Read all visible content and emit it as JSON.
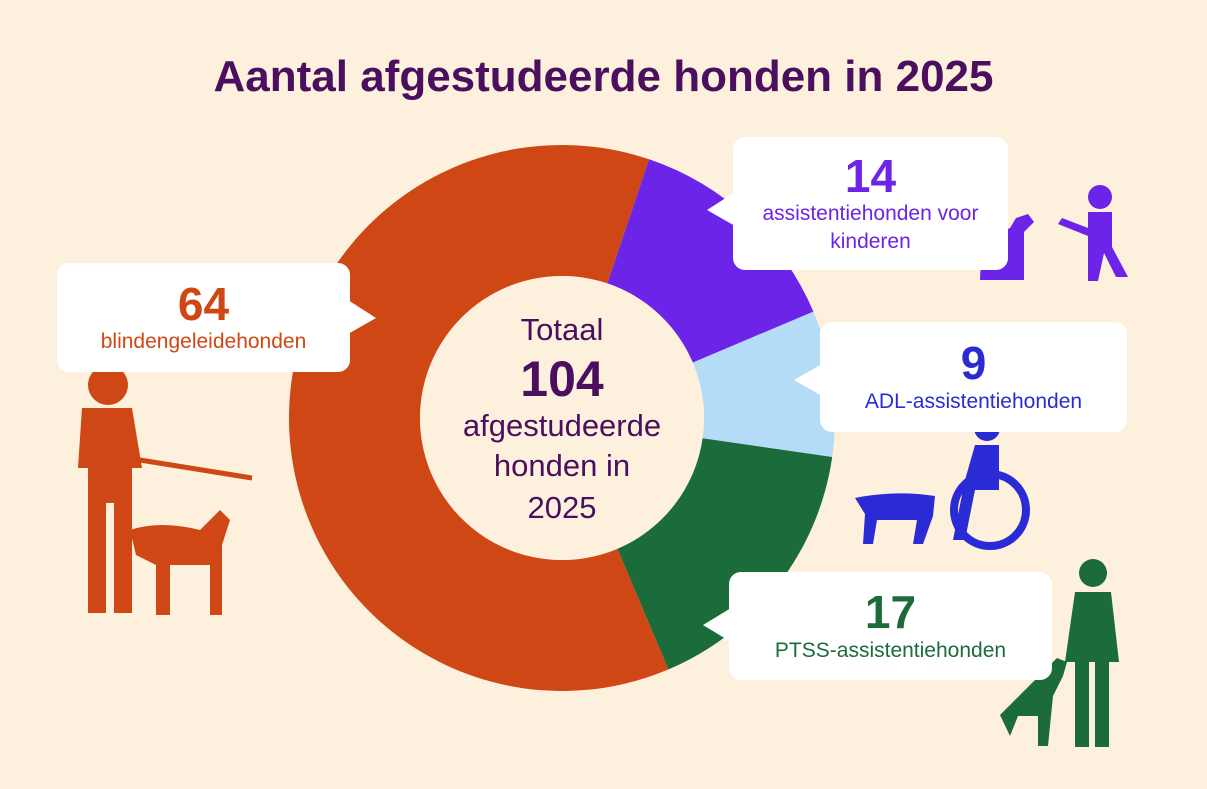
{
  "chart_data": {
    "type": "donut",
    "title": "Aantal afgestudeerde honden in 2025",
    "center_label": "Totaal",
    "total": 104,
    "center_lines": [
      "afgestudeerde",
      "honden in",
      "2025"
    ],
    "categories": [
      "assistentiehonden voor kinderen",
      "ADL-assistentiehonden",
      "PTSS-assistentiehonden",
      "blindengeleidehonden"
    ],
    "values": [
      14,
      9,
      17,
      64
    ],
    "colors": [
      "#6b24e8",
      "#b5dcf7",
      "#1c6b3b",
      "#cf4714"
    ],
    "label_colors": [
      "#6b24e8",
      "#2b2bd6",
      "#1c6b3b",
      "#cf4714"
    ]
  }
}
